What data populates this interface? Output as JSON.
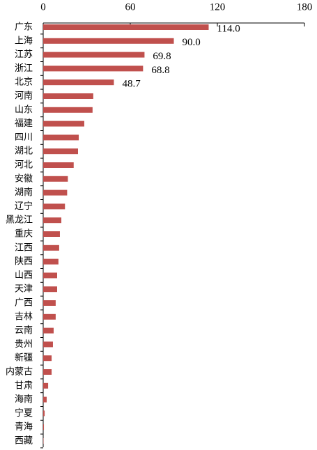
{
  "chart_data": {
    "type": "bar",
    "orientation": "horizontal",
    "categories": [
      "广东",
      "上海",
      "江苏",
      "浙江",
      "北京",
      "河南",
      "山东",
      "福建",
      "四川",
      "湖北",
      "河北",
      "安徽",
      "湖南",
      "辽宁",
      "黑龙江",
      "重庆",
      "江西",
      "陕西",
      "山西",
      "天津",
      "广西",
      "吉林",
      "云南",
      "贵州",
      "新疆",
      "内蒙古",
      "甘肃",
      "海南",
      "宁夏",
      "青海",
      "西藏"
    ],
    "values": [
      114.0,
      90.0,
      69.8,
      68.8,
      48.7,
      34.5,
      34,
      28.3,
      24.5,
      24,
      21,
      17,
      16.5,
      15,
      12.5,
      11.5,
      11,
      10.5,
      9.6,
      9.6,
      8.6,
      8.6,
      7.2,
      6.7,
      5.8,
      5.8,
      3.4,
      2.4,
      1,
      0.5,
      0.2
    ],
    "value_labels": [
      "114.0",
      "90.0",
      "69.8",
      "68.8",
      "48.7",
      null,
      null,
      null,
      null,
      null,
      null,
      null,
      null,
      null,
      null,
      null,
      null,
      null,
      null,
      null,
      null,
      null,
      null,
      null,
      null,
      null,
      null,
      null,
      null,
      null,
      null
    ],
    "color": "#c0504d",
    "xlim": [
      0,
      180
    ],
    "xticks": [
      0,
      60,
      120,
      180
    ]
  }
}
